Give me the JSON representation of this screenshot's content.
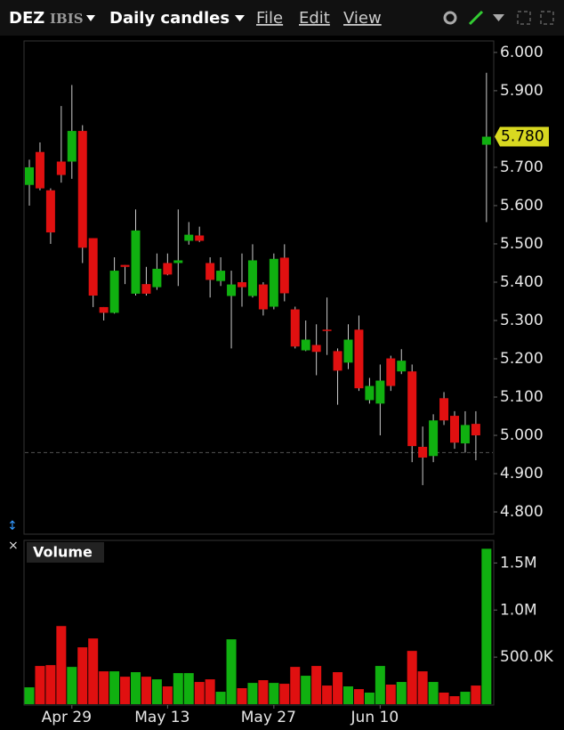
{
  "toolbar": {
    "symbol": "DEZ",
    "exchange": "IBIS",
    "period": "Daily candles",
    "menus": [
      "File",
      "Edit",
      "View"
    ]
  },
  "chart_data": [
    {
      "type": "candlestick",
      "categories": [
        null,
        null,
        null,
        null,
        "Apr 29",
        null,
        null,
        null,
        null,
        null,
        null,
        null,
        null,
        "May 13",
        null,
        null,
        null,
        null,
        null,
        null,
        null,
        null,
        null,
        "May 27",
        null,
        null,
        null,
        null,
        null,
        null,
        null,
        null,
        null,
        "Jun 10",
        null,
        null,
        null,
        null,
        null,
        null,
        null,
        null,
        null,
        null
      ],
      "open": [
        5.654,
        5.74,
        5.64,
        5.715,
        5.715,
        5.795,
        5.515,
        5.335,
        5.32,
        5.445,
        5.37,
        5.395,
        5.387,
        5.45,
        5.45,
        5.508,
        5.522,
        5.45,
        5.403,
        5.364,
        5.4,
        5.364,
        5.394,
        5.336,
        5.464,
        5.329,
        5.222,
        5.236,
        5.276,
        5.22,
        5.19,
        5.276,
        5.092,
        5.083,
        5.201,
        5.167,
        5.167,
        4.97,
        4.946,
        5.097,
        5.051,
        4.979,
        5.03,
        5.759
      ],
      "high": [
        5.72,
        5.765,
        5.645,
        5.86,
        5.915,
        5.81,
        5.515,
        5.335,
        5.465,
        5.445,
        5.59,
        5.44,
        5.475,
        5.475,
        5.59,
        5.557,
        5.545,
        5.465,
        5.465,
        5.43,
        5.475,
        5.499,
        5.4,
        5.475,
        5.499,
        5.336,
        5.3,
        5.29,
        5.36,
        5.227,
        5.29,
        5.313,
        5.15,
        5.185,
        5.208,
        5.225,
        5.185,
        5.023,
        5.055,
        5.113,
        5.063,
        5.063,
        5.063,
        5.947
      ],
      "low": [
        5.6,
        5.64,
        5.5,
        5.66,
        5.67,
        5.45,
        5.335,
        5.3,
        5.318,
        5.395,
        5.365,
        5.365,
        5.38,
        5.418,
        5.39,
        5.498,
        5.505,
        5.36,
        5.39,
        5.227,
        5.336,
        5.36,
        5.313,
        5.329,
        5.35,
        5.227,
        5.22,
        5.157,
        5.21,
        5.08,
        5.173,
        5.116,
        5.083,
        5.0,
        5.116,
        5.16,
        4.93,
        4.87,
        4.93,
        5.027,
        4.965,
        4.955,
        4.935,
        5.557
      ],
      "close": [
        5.7,
        5.645,
        5.53,
        5.68,
        5.795,
        5.49,
        5.365,
        5.32,
        5.43,
        5.44,
        5.535,
        5.37,
        5.435,
        5.42,
        5.457,
        5.524,
        5.508,
        5.406,
        5.43,
        5.394,
        5.387,
        5.457,
        5.329,
        5.461,
        5.371,
        5.232,
        5.25,
        5.218,
        5.273,
        5.169,
        5.25,
        5.123,
        5.129,
        5.143,
        5.129,
        5.195,
        4.972,
        4.942,
        5.039,
        5.039,
        4.981,
        5.027,
        5.0,
        5.78
      ],
      "up_color": "#10b010",
      "down_color": "#e01010",
      "ylim": [
        4.742,
        6.03
      ],
      "yticks": [
        {
          "value": 4.8,
          "label": "4.800"
        },
        {
          "value": 4.9,
          "label": "4.900"
        },
        {
          "value": 5.0,
          "label": "5.000"
        },
        {
          "value": 5.1,
          "label": "5.100"
        },
        {
          "value": 5.2,
          "label": "5.200"
        },
        {
          "value": 5.3,
          "label": "5.300"
        },
        {
          "value": 5.4,
          "label": "5.400"
        },
        {
          "value": 5.5,
          "label": "5.500"
        },
        {
          "value": 5.6,
          "label": "5.600"
        },
        {
          "value": 5.7,
          "label": "5.700"
        },
        {
          "value": 5.9,
          "label": "5.900"
        },
        {
          "value": 6.0,
          "label": "6.000"
        }
      ],
      "last_price": {
        "value": 5.78,
        "label": "5.780"
      },
      "dashed_level": 4.955
    },
    {
      "type": "volume",
      "title": "Volume",
      "values": [
        179000,
        406000,
        415000,
        830000,
        396000,
        604000,
        698000,
        349000,
        349000,
        292000,
        340000,
        292000,
        264000,
        189000,
        330000,
        330000,
        236000,
        264000,
        132000,
        689000,
        170000,
        226000,
        255000,
        226000,
        217000,
        396000,
        302000,
        406000,
        198000,
        340000,
        189000,
        160000,
        123000,
        406000,
        208000,
        236000,
        566000,
        349000,
        236000,
        123000,
        85000,
        132000,
        198000,
        1651000
      ],
      "ylim": [
        0,
        1740000
      ],
      "yticks": [
        {
          "value": 500000,
          "label": "500.0K"
        },
        {
          "value": 1000000,
          "label": "1.0M"
        },
        {
          "value": 1500000,
          "label": "1.5M"
        }
      ]
    }
  ]
}
